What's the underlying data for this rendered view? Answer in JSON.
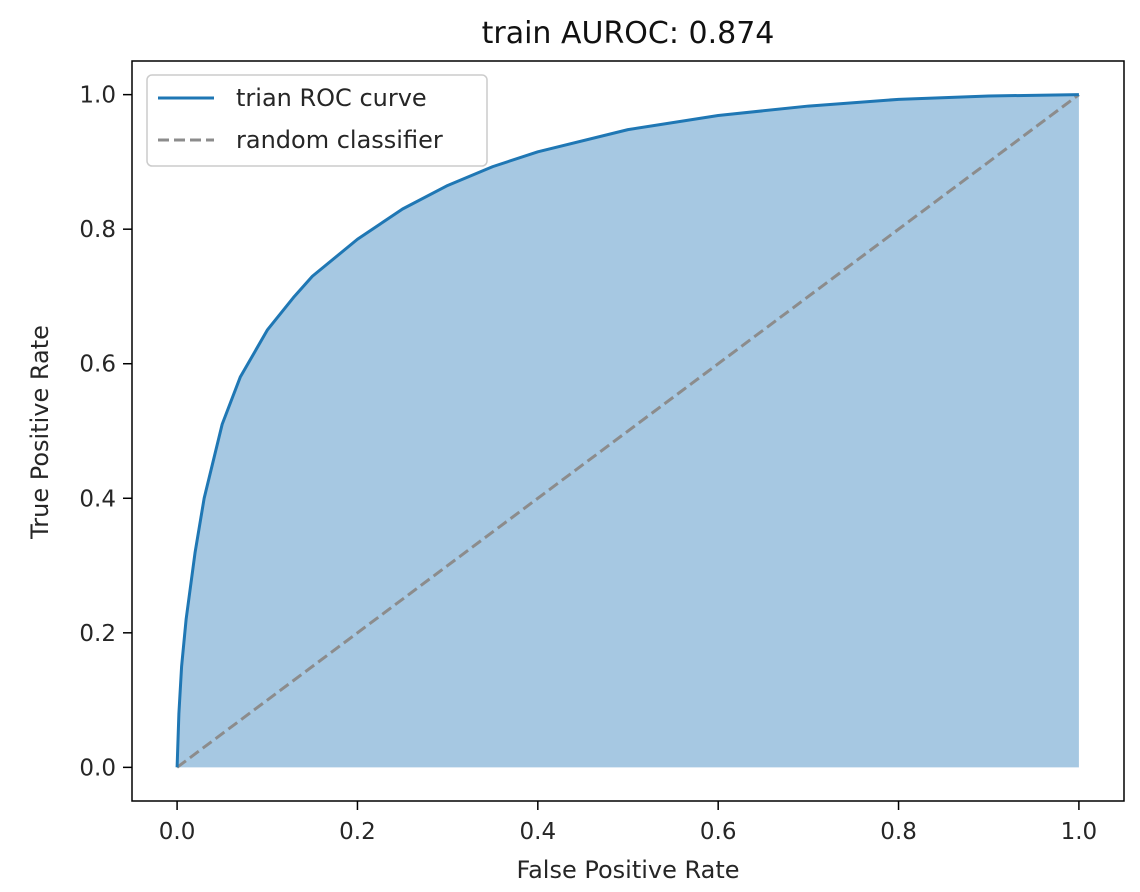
{
  "chart_data": {
    "type": "line",
    "title": "train AUROC: 0.874",
    "xlabel": "False Positive Rate",
    "ylabel": "True Positive Rate",
    "xlim": [
      -0.05,
      1.05
    ],
    "ylim": [
      -0.05,
      1.05
    ],
    "xticks": [
      0.0,
      0.2,
      0.4,
      0.6,
      0.8,
      1.0
    ],
    "xtick_labels": [
      "0.0",
      "0.2",
      "0.4",
      "0.6",
      "0.8",
      "1.0"
    ],
    "yticks": [
      0.0,
      0.2,
      0.4,
      0.6,
      0.8,
      1.0
    ],
    "ytick_labels": [
      "0.0",
      "0.2",
      "0.4",
      "0.6",
      "0.8",
      "1.0"
    ],
    "grid": false,
    "legend_position": "top-left",
    "series": [
      {
        "name": "trian ROC curve",
        "style": "solid",
        "color": "#1f77b4",
        "fill_color": "#a6c8e2",
        "filled": true,
        "x": [
          0.0,
          0.002,
          0.005,
          0.01,
          0.02,
          0.03,
          0.05,
          0.07,
          0.1,
          0.13,
          0.15,
          0.2,
          0.25,
          0.3,
          0.35,
          0.4,
          0.5,
          0.6,
          0.7,
          0.8,
          0.9,
          1.0
        ],
        "y": [
          0.0,
          0.08,
          0.15,
          0.22,
          0.32,
          0.4,
          0.51,
          0.58,
          0.65,
          0.7,
          0.73,
          0.785,
          0.83,
          0.865,
          0.893,
          0.915,
          0.948,
          0.969,
          0.983,
          0.993,
          0.998,
          1.0
        ]
      },
      {
        "name": "random classifier",
        "style": "dashed",
        "color": "#8c8c8c",
        "x": [
          0.0,
          1.0
        ],
        "y": [
          0.0,
          1.0
        ]
      }
    ]
  }
}
